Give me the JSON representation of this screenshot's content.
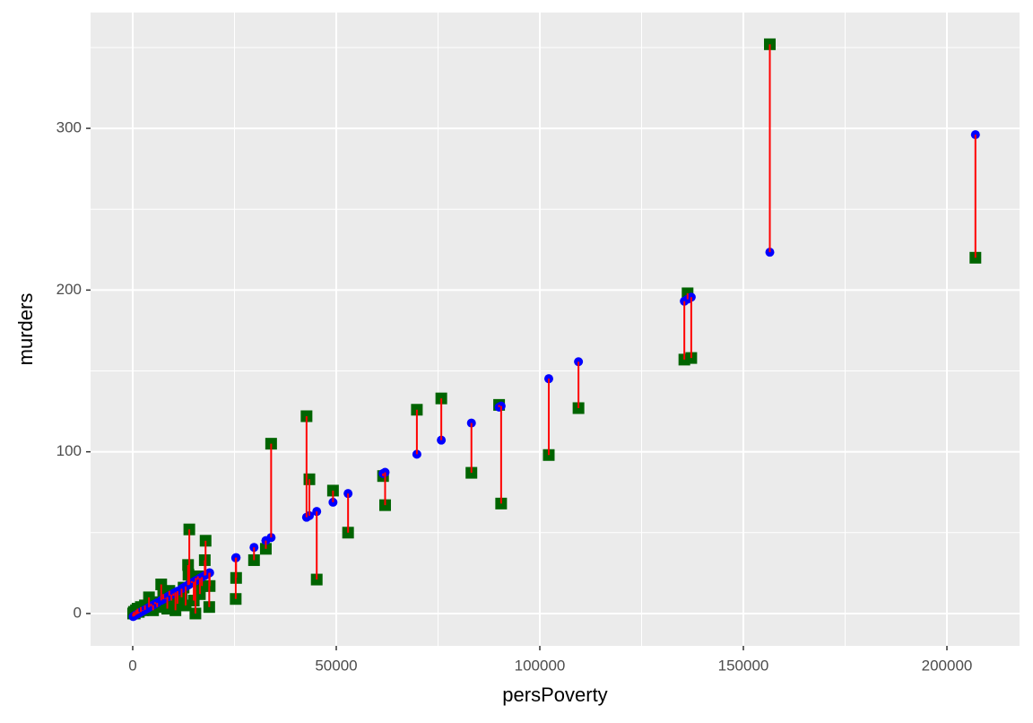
{
  "chart_data": {
    "type": "residual-scatter",
    "x_label": "persPoverty",
    "y_label": "murders",
    "xlim": [
      -10352,
      217841
    ],
    "ylim": [
      -20,
      371.6
    ],
    "xticks": [
      0,
      50000,
      100000,
      150000,
      200000
    ],
    "yticks": [
      0,
      100,
      200,
      300
    ],
    "x_minor_grid": [
      25000,
      75000,
      125000,
      175000
    ],
    "y_minor_grid": [
      50,
      150,
      250,
      350
    ],
    "grid": true,
    "segment_color": "#ff0000",
    "x": [
      100,
      300,
      500,
      800,
      1200,
      1500,
      2000,
      2500,
      3000,
      3500,
      4000,
      4500,
      5000,
      5500,
      6000,
      7000,
      7500,
      8000,
      8500,
      9000,
      9500,
      10000,
      10500,
      11000,
      12000,
      12500,
      13000,
      14500,
      15000,
      16000,
      16500,
      17000,
      13600,
      13700,
      13900,
      15400,
      15500,
      17700,
      17900,
      18800,
      18900,
      25300,
      25400,
      29800,
      32700,
      34000,
      42700,
      43400,
      45200,
      49200,
      52900,
      61500,
      62000,
      69800,
      75800,
      83200,
      90000,
      90500,
      102200,
      109500,
      135500,
      136300,
      137200,
      156500,
      207000
    ],
    "series": [
      {
        "shape": "square",
        "color": "#006400",
        "values": [
          0,
          1,
          0,
          2,
          3,
          1,
          4,
          2,
          5,
          3,
          10,
          6,
          2,
          7,
          4,
          18,
          12,
          9,
          3,
          14,
          8,
          11,
          2,
          6,
          10,
          16,
          5,
          20,
          8,
          23,
          12,
          17,
          30,
          24,
          52,
          0,
          22,
          33,
          45,
          4,
          17,
          9,
          22,
          33,
          40,
          105,
          122,
          83,
          21,
          76,
          50,
          85,
          67,
          126,
          133,
          87,
          129,
          68,
          98,
          127,
          157,
          198,
          158,
          352,
          220
        ]
      },
      {
        "shape": "circle",
        "color": "#0000ff",
        "values": [
          -1.9,
          -1.6,
          -1.3,
          -0.8,
          -0.3,
          0.2,
          0.9,
          1.6,
          2.3,
          3,
          3.8,
          4.5,
          5.2,
          5.9,
          6.6,
          8.1,
          8.8,
          9.5,
          10.2,
          11,
          11.7,
          12.4,
          13.1,
          13.8,
          15.3,
          16,
          16.7,
          18.9,
          19.6,
          21,
          21.8,
          22.5,
          17.6,
          17.7,
          18,
          20.2,
          20.3,
          23.5,
          23.8,
          25.1,
          25.2,
          34.4,
          34.6,
          40.9,
          45.1,
          47,
          59.5,
          60.5,
          63.1,
          68.8,
          74.2,
          86.6,
          87.3,
          98.5,
          107.2,
          117.8,
          127.6,
          128.3,
          145.2,
          155.7,
          193.1,
          194.3,
          195.6,
          223.4,
          296.1
        ]
      }
    ]
  }
}
